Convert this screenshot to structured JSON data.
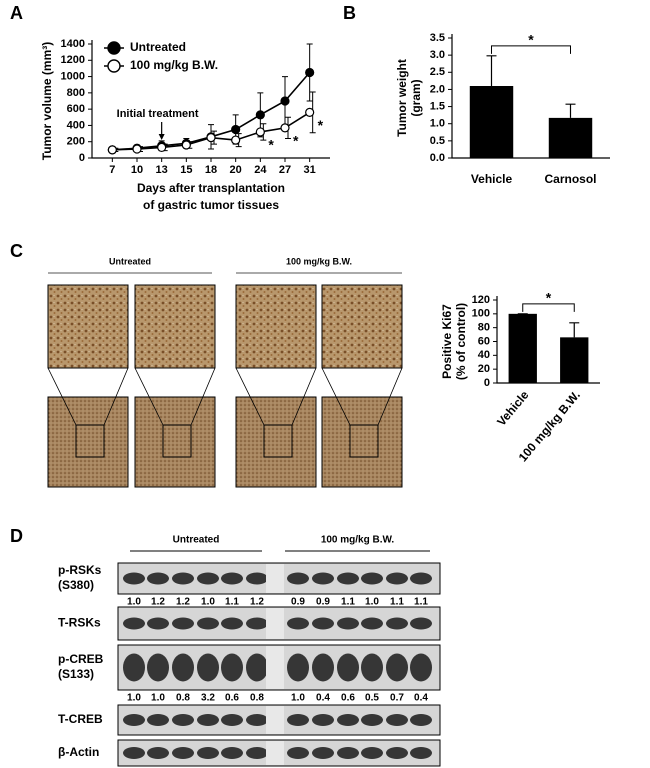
{
  "panel_labels": [
    "A",
    "B",
    "C",
    "D"
  ],
  "chart_data": [
    {
      "type": "line",
      "ylabel": "Tumor volume (mm³)",
      "xlabel": [
        "Days after transplantation",
        "of gastric tumor tissues"
      ],
      "categories": [
        "7",
        "10",
        "13",
        "15",
        "18",
        "20",
        "24",
        "27",
        "31"
      ],
      "series": [
        {
          "name": "Untreated",
          "color": "#000000",
          "values": [
            100,
            120,
            150,
            180,
            260,
            350,
            530,
            700,
            1050
          ],
          "errors": [
            30,
            40,
            60,
            60,
            150,
            180,
            270,
            300,
            350
          ]
        },
        {
          "name": "100 mg/kg B.W.",
          "color": "#ffffff",
          "values": [
            100,
            110,
            130,
            160,
            250,
            220,
            320,
            370,
            560
          ],
          "errors": [
            20,
            30,
            40,
            40,
            80,
            80,
            100,
            130,
            250
          ]
        }
      ],
      "ylim": [
        0,
        1400
      ],
      "yticks": [
        0,
        200,
        400,
        600,
        800,
        1000,
        1200,
        1400
      ],
      "annotation": "Initial treatment",
      "markers": [
        "*",
        "*",
        "*"
      ]
    },
    {
      "type": "bar",
      "ylabel": [
        "Tumor weight",
        "(gram)"
      ],
      "categories": [
        "Vehicle",
        "Carnosol"
      ],
      "values": [
        2.1,
        1.17
      ],
      "errors": [
        0.88,
        0.4
      ],
      "color": "#000000",
      "ylim": [
        0,
        3.5
      ],
      "yticks": [
        {
          "value": 0,
          "label": "0.0"
        },
        0.5,
        {
          "value": 1,
          "label": "1.0"
        },
        1.5,
        {
          "value": 2,
          "label": "2.0"
        },
        2.5,
        {
          "value": 3,
          "label": "3.0"
        },
        3.5
      ],
      "significance": "*"
    },
    {
      "type": "bar",
      "ylabel": [
        "Positive Ki67",
        "(% of control)"
      ],
      "categories": [
        "Vehicle",
        "100 mg/kg B.W."
      ],
      "values": [
        100,
        66
      ],
      "errors": [
        0,
        21
      ],
      "color": "#000000",
      "ylim": [
        0,
        120
      ],
      "yticks": [
        0,
        20,
        40,
        60,
        80,
        100,
        120
      ],
      "significance": "*"
    }
  ],
  "micrographs": {
    "groups": [
      "Untreated",
      "100 mg/kg B.W."
    ]
  },
  "blot": {
    "groups": [
      "Untreated",
      "100 mg/kg B.W."
    ],
    "rows": [
      {
        "label": [
          "p-RSKs",
          "(S380)"
        ],
        "quant": [
          "1.0",
          "1.2",
          "1.2",
          "1.0",
          "1.1",
          "1.2",
          "0.9",
          "0.9",
          "1.1",
          "1.0",
          "1.1",
          "1.1"
        ]
      },
      {
        "label": [
          "T-RSKs"
        ]
      },
      {
        "label": [
          "p-CREB",
          "(S133)"
        ],
        "quant": [
          "1.0",
          "1.0",
          "0.8",
          "3.2",
          "0.6",
          "0.8",
          "1.0",
          "0.4",
          "0.6",
          "0.5",
          "0.7",
          "0.4"
        ]
      },
      {
        "label": [
          "T-CREB"
        ]
      },
      {
        "label": [
          "β-Actin"
        ]
      }
    ]
  }
}
